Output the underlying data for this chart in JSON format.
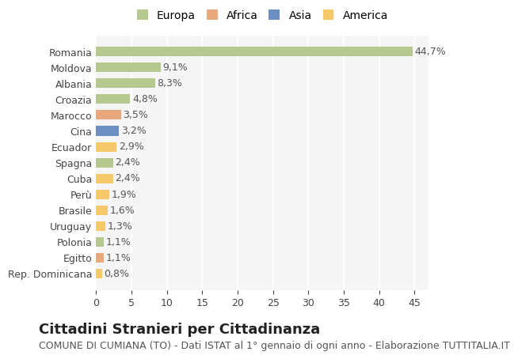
{
  "countries": [
    "Romania",
    "Moldova",
    "Albania",
    "Croazia",
    "Marocco",
    "Cina",
    "Ecuador",
    "Spagna",
    "Cuba",
    "Perù",
    "Brasile",
    "Uruguay",
    "Polonia",
    "Egitto",
    "Rep. Dominicana"
  ],
  "values": [
    44.7,
    9.1,
    8.3,
    4.8,
    3.5,
    3.2,
    2.9,
    2.4,
    2.4,
    1.9,
    1.6,
    1.3,
    1.1,
    1.1,
    0.8
  ],
  "labels": [
    "44,7%",
    "9,1%",
    "8,3%",
    "4,8%",
    "3,5%",
    "3,2%",
    "2,9%",
    "2,4%",
    "2,4%",
    "1,9%",
    "1,6%",
    "1,3%",
    "1,1%",
    "1,1%",
    "0,8%"
  ],
  "colors": [
    "#b5c98e",
    "#b5c98e",
    "#b5c98e",
    "#b5c98e",
    "#e8a87c",
    "#6b8fc2",
    "#f5c96a",
    "#b5c98e",
    "#f5c96a",
    "#f5c96a",
    "#f5c96a",
    "#f5c96a",
    "#b5c98e",
    "#e8a87c",
    "#f5c96a"
  ],
  "legend_labels": [
    "Europa",
    "Africa",
    "Asia",
    "America"
  ],
  "legend_colors": [
    "#b5c98e",
    "#e8a87c",
    "#6b8fc2",
    "#f5c96a"
  ],
  "xlim": [
    0,
    47
  ],
  "xticks": [
    0,
    5,
    10,
    15,
    20,
    25,
    30,
    35,
    40,
    45
  ],
  "title": "Cittadini Stranieri per Cittadinanza",
  "subtitle": "COMUNE DI CUMIANA (TO) - Dati ISTAT al 1° gennaio di ogni anno - Elaborazione TUTTITALIA.IT",
  "background_color": "#ffffff",
  "plot_background": "#f5f5f5",
  "grid_color": "#ffffff",
  "bar_height": 0.6,
  "title_fontsize": 13,
  "subtitle_fontsize": 9,
  "tick_fontsize": 9,
  "label_fontsize": 9,
  "legend_fontsize": 10
}
